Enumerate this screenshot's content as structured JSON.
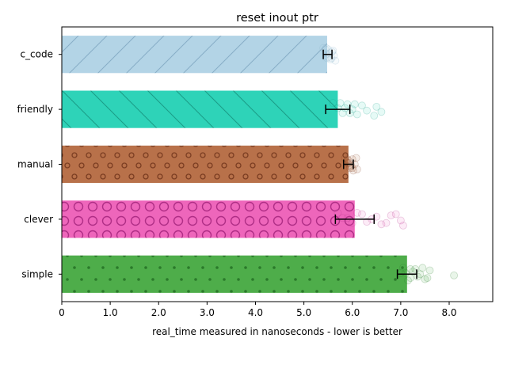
{
  "chart_data": {
    "type": "bar",
    "orientation": "horizontal",
    "title": "reset inout ptr",
    "xlabel": "real_time measured in nanoseconds - lower is better",
    "ylabel": "",
    "xlim": [
      0,
      8.9
    ],
    "xticks": [
      0,
      1,
      2,
      3,
      4,
      5,
      6,
      7,
      8
    ],
    "xtick_labels": [
      "0",
      "1.0",
      "2.0",
      "3.0",
      "4.0",
      "5.0",
      "6.0",
      "7.0",
      "8.0"
    ],
    "categories": [
      "c_code",
      "friendly",
      "manual",
      "clever",
      "simple"
    ],
    "values": [
      5.48,
      5.7,
      5.92,
      6.05,
      7.13
    ],
    "error_low": [
      5.4,
      5.45,
      5.82,
      5.65,
      6.93
    ],
    "error_high": [
      5.58,
      5.95,
      6.02,
      6.45,
      7.33
    ],
    "samples": [
      [
        5.4,
        5.45,
        5.48,
        5.5,
        5.52,
        5.55,
        5.6,
        5.62,
        5.65,
        5.58,
        5.5,
        5.46,
        5.53,
        5.57,
        5.44
      ],
      [
        5.6,
        5.7,
        5.8,
        5.9,
        6.0,
        6.1,
        6.2,
        6.3,
        6.45,
        6.5,
        6.6,
        5.75,
        5.85,
        5.95,
        6.05
      ],
      [
        5.85,
        5.9,
        5.95,
        6.0,
        6.05,
        6.1,
        5.92,
        5.98,
        6.02,
        5.88,
        5.96,
        6.08,
        5.93,
        6.0,
        5.9
      ],
      [
        5.7,
        5.9,
        6.0,
        6.2,
        6.4,
        6.6,
        6.8,
        7.0,
        7.05,
        6.5,
        6.3,
        6.1,
        5.8,
        6.7,
        6.9
      ],
      [
        7.05,
        7.1,
        7.2,
        7.3,
        7.4,
        7.5,
        7.6,
        8.1,
        7.15,
        7.25,
        7.35,
        7.45,
        7.0,
        7.55,
        7.2
      ]
    ],
    "colors": [
      "#b3d4e6",
      "#2ed3b8",
      "#b8714a",
      "#ee66bb",
      "#4ead4a"
    ],
    "edge_colors": [
      "#87aec7",
      "#1a9c86",
      "#7b3d22",
      "#b02e86",
      "#2a7a2a"
    ],
    "patterns": [
      "diag-fwd",
      "diag-back",
      "small-circles",
      "big-circles",
      "dots"
    ],
    "grid": false,
    "legend": "none"
  }
}
